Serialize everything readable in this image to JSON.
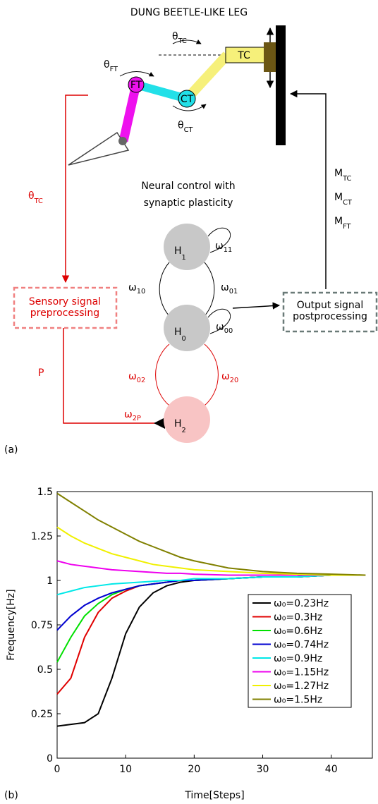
{
  "diagram": {
    "title": "DUNG BEETLE-LIKE LEG",
    "joints": [
      "TC",
      "CT",
      "FT"
    ],
    "angles": [
      {
        "main": "θ",
        "sub": "TC"
      },
      {
        "main": "θ",
        "sub": "FT"
      },
      {
        "main": "θ",
        "sub": "CT"
      }
    ],
    "feedback_label": {
      "main": "θ",
      "sub": "TC"
    },
    "controller": [
      "Neural control with",
      "synaptic plasticity"
    ],
    "motors": [
      {
        "main": "M",
        "sub": "TC"
      },
      {
        "main": "M",
        "sub": "CT"
      },
      {
        "main": "M",
        "sub": "FT"
      }
    ],
    "sensory_box": [
      "Sensory signal",
      "preprocessing"
    ],
    "output_box": [
      "Output signal",
      "postprocessing"
    ],
    "p_label": "P",
    "nodes": [
      {
        "main": "H",
        "sub": "1"
      },
      {
        "main": "H",
        "sub": "0"
      },
      {
        "main": "H",
        "sub": "2"
      }
    ],
    "weights": [
      {
        "main": "ω",
        "sub": "11"
      },
      {
        "main": "ω",
        "sub": "10"
      },
      {
        "main": "ω",
        "sub": "01"
      },
      {
        "main": "ω",
        "sub": "00"
      },
      {
        "main": "ω",
        "sub": "02"
      },
      {
        "main": "ω",
        "sub": "20"
      },
      {
        "main": "ω",
        "sub": "2P"
      }
    ],
    "panel_a": "(a)",
    "panel_b": "(b)"
  },
  "chart_data": {
    "type": "line",
    "xlabel": "Time[Steps]",
    "ylabel": "Frequency[Hz]",
    "xlim": [
      0,
      46
    ],
    "xticks": [
      0,
      10,
      20,
      30,
      40
    ],
    "ylim": [
      0,
      1.5
    ],
    "yticks": [
      0,
      0.25,
      0.5,
      0.75,
      1,
      1.25,
      1.5
    ],
    "legend": "right",
    "x": [
      0,
      2,
      4,
      6,
      8,
      10,
      12,
      14,
      16,
      18,
      20,
      25,
      30,
      35,
      40,
      45
    ],
    "series": [
      {
        "name": "ω₀=0.23Hz",
        "color": "#000000",
        "values": [
          0.18,
          0.19,
          0.2,
          0.25,
          0.45,
          0.7,
          0.85,
          0.93,
          0.97,
          0.99,
          1.0,
          1.01,
          1.02,
          1.02,
          1.03,
          1.03
        ]
      },
      {
        "name": "ω₀=0.3Hz",
        "color": "#e00000",
        "values": [
          0.36,
          0.45,
          0.68,
          0.82,
          0.9,
          0.94,
          0.97,
          0.98,
          0.99,
          1.0,
          1.0,
          1.01,
          1.02,
          1.02,
          1.03,
          1.03
        ]
      },
      {
        "name": "ω₀=0.6Hz",
        "color": "#00e000",
        "values": [
          0.54,
          0.68,
          0.8,
          0.87,
          0.92,
          0.95,
          0.97,
          0.98,
          0.99,
          1.0,
          1.0,
          1.01,
          1.02,
          1.02,
          1.03,
          1.03
        ]
      },
      {
        "name": "ω₀=0.74Hz",
        "color": "#0000d0",
        "values": [
          0.72,
          0.8,
          0.86,
          0.9,
          0.93,
          0.95,
          0.97,
          0.98,
          0.99,
          1.0,
          1.0,
          1.01,
          1.02,
          1.02,
          1.03,
          1.03
        ]
      },
      {
        "name": "ω₀=0.9Hz",
        "color": "#00e8e8",
        "values": [
          0.92,
          0.94,
          0.96,
          0.97,
          0.98,
          0.985,
          0.99,
          0.995,
          1.0,
          1.0,
          1.01,
          1.01,
          1.02,
          1.02,
          1.03,
          1.03
        ]
      },
      {
        "name": "ω₀=1.15Hz",
        "color": "#ee00ee",
        "values": [
          1.11,
          1.09,
          1.08,
          1.07,
          1.06,
          1.055,
          1.05,
          1.045,
          1.04,
          1.04,
          1.035,
          1.03,
          1.03,
          1.03,
          1.03,
          1.03
        ]
      },
      {
        "name": "ω₀=1.27Hz",
        "color": "#f0f000",
        "values": [
          1.3,
          1.25,
          1.21,
          1.18,
          1.15,
          1.13,
          1.11,
          1.09,
          1.08,
          1.07,
          1.06,
          1.05,
          1.04,
          1.035,
          1.03,
          1.03
        ]
      },
      {
        "name": "ω₀=1.5Hz",
        "color": "#808000",
        "values": [
          1.49,
          1.44,
          1.39,
          1.34,
          1.3,
          1.26,
          1.22,
          1.19,
          1.16,
          1.13,
          1.11,
          1.07,
          1.05,
          1.04,
          1.035,
          1.03
        ]
      }
    ]
  }
}
